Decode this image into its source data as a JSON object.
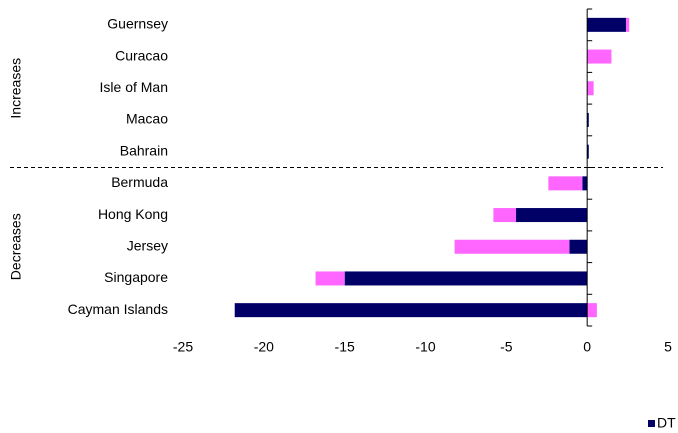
{
  "chart_data": {
    "type": "bar",
    "orientation": "horizontal",
    "stacked": true,
    "groups": [
      {
        "label": "Increases",
        "categories": [
          "Guernsey",
          "Curacao",
          "Isle of Man",
          "Macao",
          "Bahrain"
        ]
      },
      {
        "label": "Decreases",
        "categories": [
          "Bermuda",
          "Hong Kong",
          "Jersey",
          "Singapore",
          "Cayman Islands"
        ]
      }
    ],
    "series": [
      {
        "name": "DT",
        "color": "#000066",
        "values": [
          2.4,
          0,
          0,
          0.1,
          0.1,
          -0.3,
          -4.4,
          -1.1,
          -15,
          -21.8
        ]
      },
      {
        "color": "#ff66ff",
        "values": [
          0.2,
          1.5,
          0.4,
          0,
          0,
          -2.1,
          -1.4,
          -7.1,
          -1.8,
          0.6
        ]
      }
    ],
    "xlim": [
      -25,
      5
    ],
    "xticks": [
      -25,
      -20,
      -15,
      -10,
      -5,
      0,
      5
    ],
    "legend": "bottom-right"
  }
}
